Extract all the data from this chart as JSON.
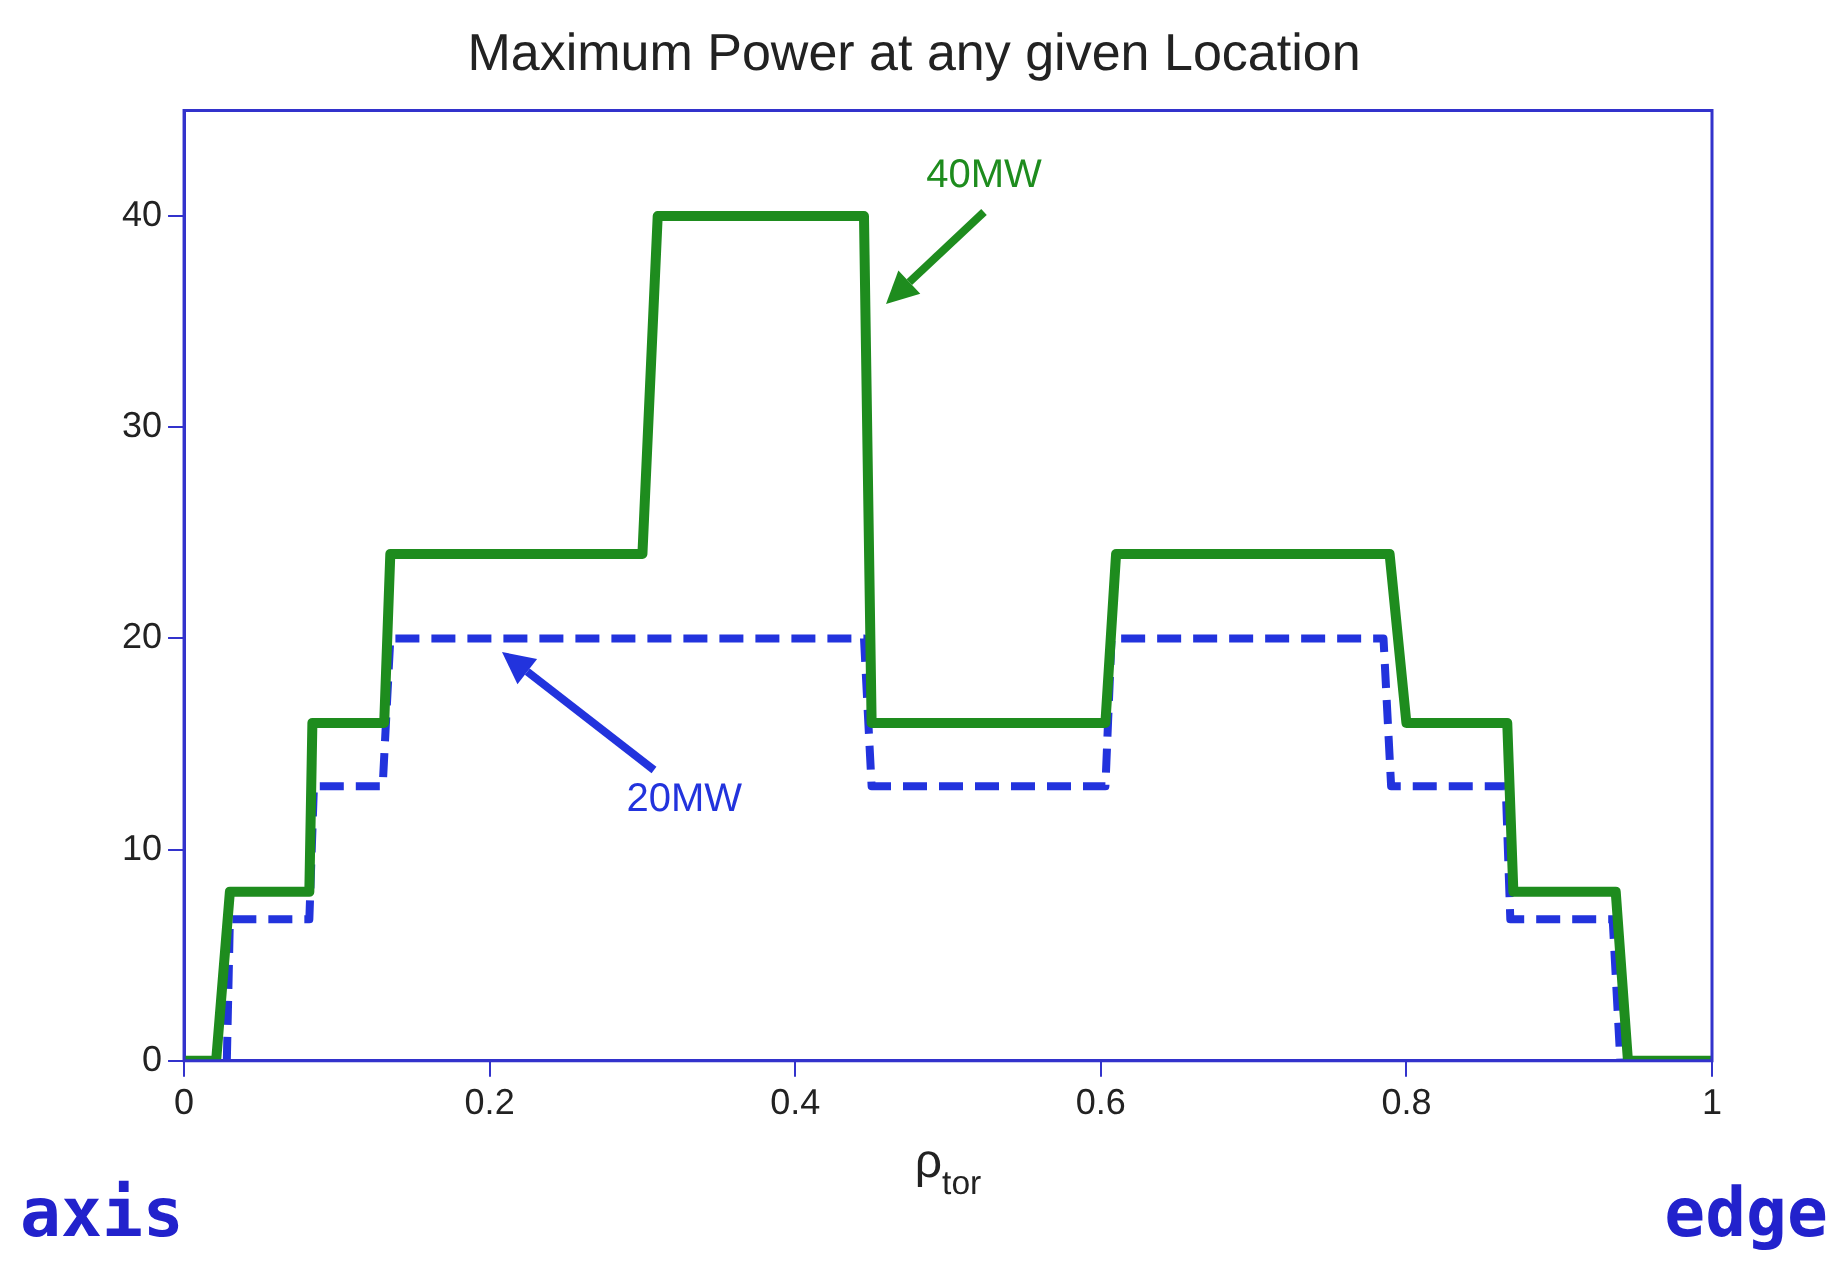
{
  "chart_data": {
    "type": "line",
    "title": "Maximum Power at any given Location",
    "xlabel": "ρ$_{tor}$",
    "xlim": [
      0,
      1
    ],
    "ylim": [
      0,
      45
    ],
    "xticks": [
      0,
      0.2,
      0.4,
      0.6,
      0.8,
      1
    ],
    "yticks": [
      0,
      10,
      20,
      30,
      40
    ],
    "grid": false,
    "legend": false,
    "marker": "none",
    "series": [
      {
        "name": "40MW",
        "color": "#1e8c1e",
        "line_style": "solid",
        "x": [
          0,
          0.021,
          0.03,
          0.082,
          0.084,
          0.131,
          0.135,
          0.3,
          0.31,
          0.445,
          0.45,
          0.603,
          0.61,
          0.789,
          0.8,
          0.866,
          0.87,
          0.937,
          0.945,
          1
        ],
        "values": [
          0,
          0,
          8,
          8,
          16,
          16,
          24,
          24,
          40,
          40,
          16,
          16,
          24,
          24,
          16,
          16,
          8,
          8,
          0,
          0
        ]
      },
      {
        "name": "20MW",
        "color": "#2233dd",
        "line_style": "dashed",
        "x": [
          0.028,
          0.03,
          0.082,
          0.085,
          0.13,
          0.135,
          0.445,
          0.45,
          0.603,
          0.607,
          0.785,
          0.79,
          0.865,
          0.868,
          0.935,
          0.94
        ],
        "values": [
          0,
          6.7,
          6.7,
          13,
          13,
          20,
          20,
          13,
          13,
          20,
          20,
          13,
          13,
          6.7,
          6.7,
          0
        ]
      }
    ],
    "annotations": [
      "axis",
      "edge"
    ]
  }
}
